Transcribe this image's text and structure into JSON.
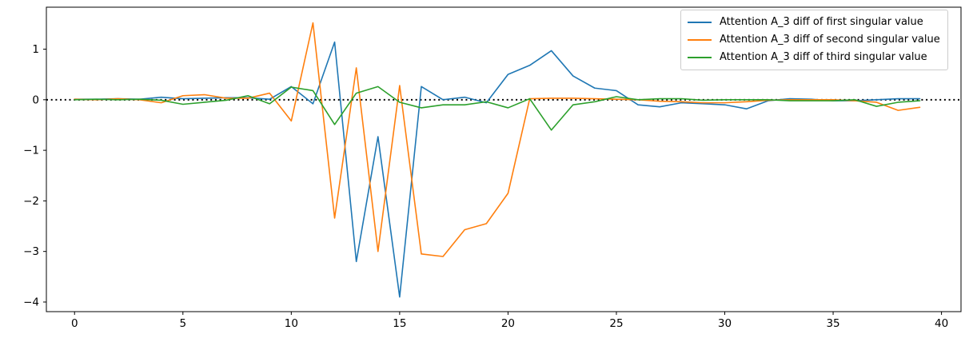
{
  "figure": {
    "background": "#ffffff",
    "axes_color": "#000000"
  },
  "chart_data": {
    "type": "line",
    "title": "",
    "xlabel": "",
    "ylabel": "",
    "grid": false,
    "legend_position": "upper right",
    "xlim": [
      -1.3,
      40.9
    ],
    "ylim": [
      -4.19,
      1.83
    ],
    "xticks": [
      0,
      5,
      10,
      15,
      20,
      25,
      30,
      35,
      40
    ],
    "xtick_labels": [
      "0",
      "5",
      "10",
      "15",
      "20",
      "25",
      "30",
      "35",
      "40"
    ],
    "yticks": [
      1,
      0,
      -1,
      -2,
      -3,
      -4
    ],
    "ytick_labels": [
      "1",
      "0",
      "−1",
      "−2",
      "−3",
      "−4"
    ],
    "zero_line": {
      "y": 0,
      "style": "dotted",
      "color": "#000000"
    },
    "x": [
      0,
      1,
      2,
      3,
      4,
      5,
      6,
      7,
      8,
      9,
      10,
      11,
      12,
      13,
      14,
      15,
      16,
      17,
      18,
      19,
      20,
      21,
      22,
      23,
      24,
      25,
      26,
      27,
      28,
      29,
      30,
      31,
      32,
      33,
      34,
      35,
      36,
      37,
      38,
      39
    ],
    "series": [
      {
        "name": "Attention A_3 diff of first singular value",
        "color": "#1f77b4",
        "values": [
          0.01,
          0.01,
          0.02,
          0.01,
          0.05,
          0.02,
          0.03,
          0.04,
          0.04,
          0.01,
          0.26,
          -0.08,
          1.14,
          -3.2,
          -0.73,
          -3.9,
          0.26,
          0.0,
          0.05,
          -0.06,
          0.5,
          0.68,
          0.97,
          0.47,
          0.23,
          0.18,
          -0.1,
          -0.14,
          -0.06,
          -0.08,
          -0.1,
          -0.18,
          -0.02,
          0.02,
          0.01,
          -0.02,
          -0.02,
          0.0,
          0.02,
          0.02
        ]
      },
      {
        "name": "Attention A_3 diff of second singular value",
        "color": "#ff7f0e",
        "values": [
          0.01,
          0.0,
          0.02,
          0.0,
          -0.06,
          0.08,
          0.1,
          0.03,
          0.03,
          0.13,
          -0.42,
          1.52,
          -2.34,
          0.63,
          -3.0,
          0.28,
          -3.05,
          -3.1,
          -2.57,
          -2.45,
          -1.85,
          0.02,
          0.03,
          0.03,
          0.02,
          0.01,
          0.0,
          -0.03,
          -0.04,
          -0.06,
          -0.06,
          -0.04,
          -0.01,
          0.0,
          0.0,
          0.0,
          -0.02,
          -0.05,
          -0.21,
          -0.15
        ]
      },
      {
        "name": "Attention A_3 diff of third singular value",
        "color": "#2ca02c",
        "values": [
          0.0,
          0.01,
          0.0,
          0.01,
          -0.01,
          -0.09,
          -0.05,
          -0.01,
          0.08,
          -0.08,
          0.25,
          0.18,
          -0.49,
          0.13,
          0.26,
          -0.05,
          -0.16,
          -0.1,
          -0.1,
          -0.04,
          -0.16,
          0.02,
          -0.6,
          -0.1,
          -0.04,
          0.06,
          0.0,
          0.02,
          0.02,
          -0.01,
          0.0,
          0.0,
          0.0,
          -0.02,
          -0.02,
          -0.02,
          0.0,
          -0.13,
          -0.05,
          -0.02
        ]
      }
    ]
  },
  "legend": {
    "entries": [
      "Attention A_3 diff of first singular value",
      "Attention A_3 diff of second singular value",
      "Attention A_3 diff of third singular value"
    ]
  }
}
